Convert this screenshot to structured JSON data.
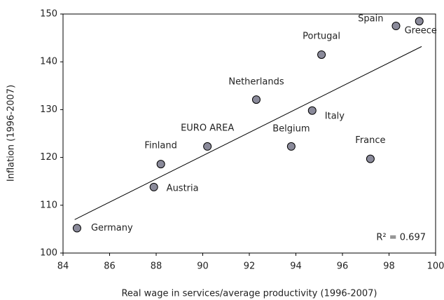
{
  "chart_data": {
    "type": "scatter",
    "xlabel": "Real wage in services/average productivity (1996-2007)",
    "ylabel": "Inflation (1996-2007)",
    "labels": [
      "Germany",
      "Austria",
      "Finland",
      "EURO AREA",
      "Netherlands",
      "Belgium",
      "Italy",
      "Portugal",
      "France",
      "Spain",
      "Greece"
    ],
    "x": [
      84.6,
      87.9,
      88.2,
      90.2,
      92.3,
      93.8,
      94.7,
      95.1,
      97.2,
      98.3,
      99.3
    ],
    "values": [
      105.2,
      113.8,
      118.6,
      122.3,
      132.1,
      122.3,
      129.8,
      141.5,
      119.7,
      147.5,
      148.5
    ],
    "color": "#8a8a9a",
    "trendline": {
      "x": [
        84.5,
        99.4
      ],
      "y": [
        107,
        143.2
      ]
    },
    "annotation": "R² = 0.697",
    "xlim": [
      84,
      100
    ],
    "xticks": [
      84,
      86,
      88,
      90,
      92,
      94,
      96,
      98,
      100
    ],
    "ylim": [
      100,
      150
    ],
    "yticks": [
      100,
      110,
      120,
      130,
      140,
      150
    ],
    "grid": false
  }
}
